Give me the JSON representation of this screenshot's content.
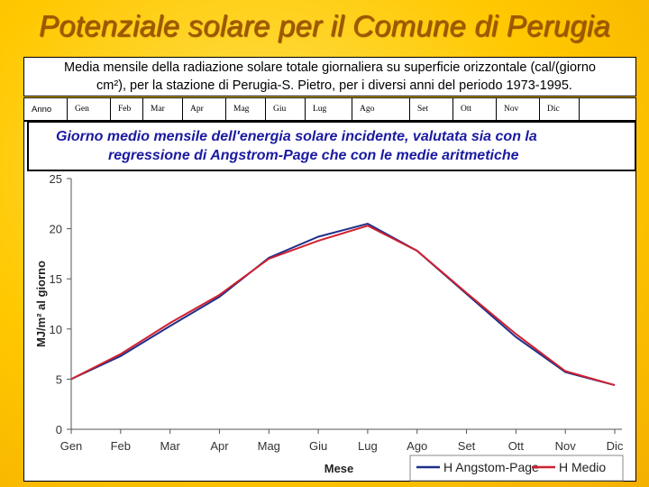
{
  "slide": {
    "title": "Potenziale solare per il Comune di Perugia"
  },
  "caption": {
    "line1": "Media mensile della radiazione solare totale giornaliera su superficie orizzontale (cal/(giorno",
    "line2": "cm²), per la stazione di Perugia-S. Pietro, per i diversi anni del periodo 1973-1995."
  },
  "table": {
    "headers": [
      "Anno",
      "Gen",
      "Feb",
      "Mar",
      "Apr",
      "Mag",
      "Giu",
      "Lug",
      "Ago",
      "Set",
      "Ott",
      "Nov",
      "Dic"
    ]
  },
  "chart_data": {
    "type": "line",
    "title_line1": "Giorno medio mensile dell'energia solare incidente, valutata sia con la",
    "title_line2": "regressione di Angstrom-Page che con le medie aritmetiche",
    "xlabel": "Mese",
    "ylabel": "MJ/m² al giorno",
    "categories": [
      "Gen",
      "Feb",
      "Mar",
      "Apr",
      "Mag",
      "Giu",
      "Lug",
      "Ago",
      "Set",
      "Ott",
      "Nov",
      "Dic"
    ],
    "ylim": [
      0,
      25
    ],
    "yticks": [
      0,
      5,
      10,
      15,
      20,
      25
    ],
    "grid": false,
    "legend_position": "bottom-right",
    "series": [
      {
        "name": "H Angstom-Page",
        "color": "#1f2f8a",
        "values": [
          5.0,
          7.3,
          10.3,
          13.2,
          17.1,
          19.2,
          20.5,
          17.8,
          13.5,
          9.2,
          5.7,
          4.4
        ]
      },
      {
        "name": "H Medio",
        "color": "#d02030",
        "values": [
          5.0,
          7.5,
          10.6,
          13.4,
          17.0,
          18.8,
          20.3,
          17.8,
          13.6,
          9.5,
          5.8,
          4.4
        ]
      }
    ]
  }
}
